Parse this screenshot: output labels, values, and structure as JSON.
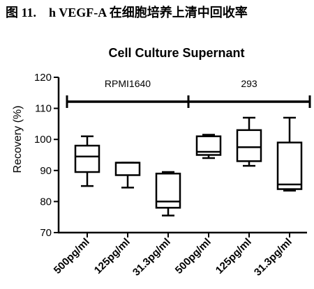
{
  "figure": {
    "number": "图 11.",
    "caption": "h VEGF-A 在细胞培养上清中回收率"
  },
  "chart_data": {
    "type": "boxplot",
    "title": "Cell Culture Supernant",
    "ylabel": "Recovery (%)",
    "xlabel": "",
    "ylim": [
      70,
      120
    ],
    "yticks": [
      70,
      80,
      90,
      100,
      110,
      120
    ],
    "grid": false,
    "categories": [
      "500pg/ml",
      "125pg/ml",
      "31.3pg/ml",
      "500pg/ml",
      "125pg/ml",
      "31.3pg/ml"
    ],
    "groups": [
      {
        "label": "RPMI1640",
        "start": 0,
        "end": 2
      },
      {
        "label": "293",
        "start": 3,
        "end": 5
      }
    ],
    "boxes": [
      {
        "min": 85,
        "q1": 89.5,
        "median": 94.5,
        "q3": 98,
        "max": 101
      },
      {
        "min": 84.5,
        "q1": 88.5,
        "median": 92.5,
        "q3": 92.5,
        "max": 92.5
      },
      {
        "min": 75.5,
        "q1": 78,
        "median": 80,
        "q3": 89,
        "max": 89.5
      },
      {
        "min": 94,
        "q1": 95,
        "median": 96,
        "q3": 101,
        "max": 101.5
      },
      {
        "min": 91.5,
        "q1": 93,
        "median": 97.5,
        "q3": 103,
        "max": 107
      },
      {
        "min": 83.5,
        "q1": 84,
        "median": 85.5,
        "q3": 99,
        "max": 107
      }
    ]
  }
}
